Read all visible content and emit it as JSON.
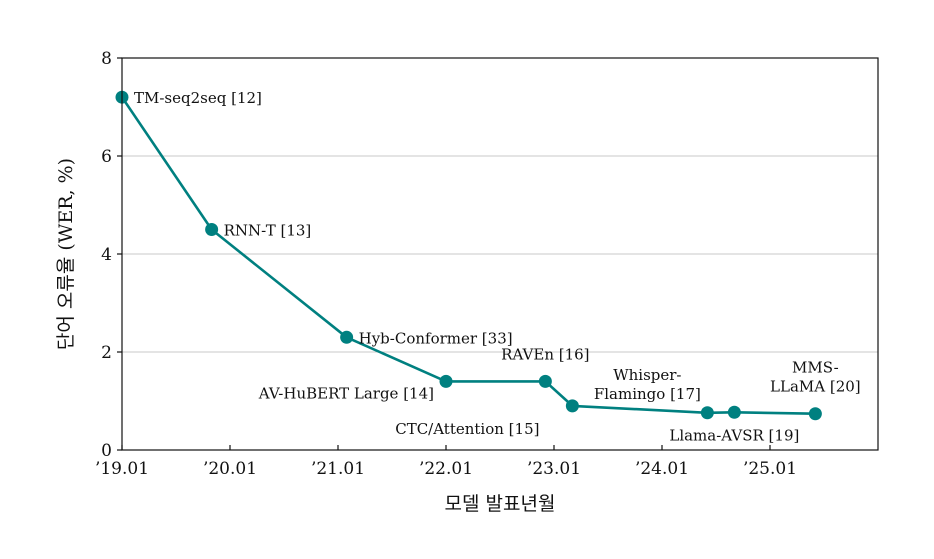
{
  "chart_data": {
    "type": "line",
    "title": "",
    "xlabel": "모델 발표년월",
    "ylabel": "단어 오류율 (WER, %)",
    "xlim": [
      2019.0,
      2026.0
    ],
    "ylim": [
      0,
      8
    ],
    "grid": "horizontal",
    "line_color": "#008080",
    "x_ticks": [
      {
        "value": 2019.0,
        "label": "’19.01"
      },
      {
        "value": 2020.0,
        "label": "’20.01"
      },
      {
        "value": 2021.0,
        "label": "’21.01"
      },
      {
        "value": 2022.0,
        "label": "’22.01"
      },
      {
        "value": 2023.0,
        "label": "’23.01"
      },
      {
        "value": 2024.0,
        "label": "’24.01"
      },
      {
        "value": 2025.0,
        "label": "’25.01"
      }
    ],
    "y_ticks": [
      {
        "value": 0,
        "label": "0"
      },
      {
        "value": 2,
        "label": "2"
      },
      {
        "value": 4,
        "label": "4"
      },
      {
        "value": 6,
        "label": "6"
      },
      {
        "value": 8,
        "label": "8"
      }
    ],
    "points": [
      {
        "x": 2019.0,
        "y": 7.2,
        "label": [
          "TM-seq2seq [12]"
        ],
        "label_pos": "right"
      },
      {
        "x": 2019.83,
        "y": 4.5,
        "label": [
          "RNN-T [13]"
        ],
        "label_pos": "right"
      },
      {
        "x": 2021.08,
        "y": 2.3,
        "label": [
          "Hyb-Conformer [33]"
        ],
        "label_pos": "right"
      },
      {
        "x": 2022.0,
        "y": 1.4,
        "label": [
          "AV-HuBERT Large [14]"
        ],
        "label_pos": "left"
      },
      {
        "x": 2022.92,
        "y": 1.4,
        "label": [
          "RAVEn [16]"
        ],
        "label_pos": "above"
      },
      {
        "x": 2023.17,
        "y": 0.9,
        "label": [
          "CTC/Attention [15]"
        ],
        "label_pos": "below-left"
      },
      {
        "x": 2024.42,
        "y": 0.76,
        "label": [
          "Whisper-",
          "Flamingo [17]"
        ],
        "label_pos": "above-left"
      },
      {
        "x": 2024.67,
        "y": 0.77,
        "label": [
          "Llama-AVSR [19]"
        ],
        "label_pos": "below"
      },
      {
        "x": 2025.42,
        "y": 0.74,
        "label": [
          "MMS-",
          "LLaMA [20]"
        ],
        "label_pos": "above"
      }
    ]
  }
}
